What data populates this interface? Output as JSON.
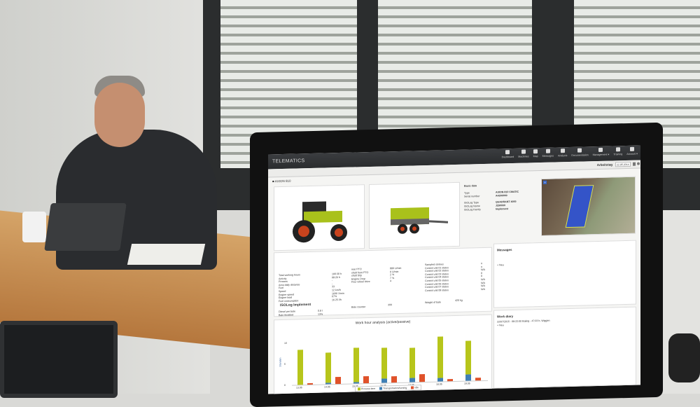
{
  "app": {
    "brand": "TELEMATICS"
  },
  "nav": [
    {
      "label": "Dashboard"
    },
    {
      "label": "Machines"
    },
    {
      "label": "Map"
    },
    {
      "label": "Messages"
    },
    {
      "label": "Analysis"
    },
    {
      "label": "Documentation"
    },
    {
      "label": "Management ▾"
    },
    {
      "label": "Training"
    },
    {
      "label": "Account ▾"
    }
  ],
  "subbar": {
    "workday_label": "Arbeitstag",
    "date": "22.05.2014"
  },
  "machine": {
    "name": "AXION 810"
  },
  "basic": {
    "title": "Basic data",
    "rows": [
      {
        "k": "Type",
        "v": "AXION 810 CMATIC"
      },
      {
        "k": "Serial number",
        "v": "A4300000"
      },
      {
        "k": "ISOLog Type",
        "v": "QUADRANT 4000"
      },
      {
        "k": "ISOLog Name",
        "v": "J290000"
      },
      {
        "k": "ISOLog Family",
        "v": "Implement"
      }
    ]
  },
  "stats": {
    "col1": [
      {
        "k": "Total working hours",
        "v": "100:30 h"
      },
      {
        "k": "Activity",
        "v": "08:26 h"
      },
      {
        "k": "Process",
        "v": "-"
      },
      {
        "k": "Area daily distance",
        "v": "-"
      },
      {
        "k": "Fuel",
        "v": "33"
      },
      {
        "k": "Speed",
        "v": "12 km/h"
      },
      {
        "k": "Engine speed",
        "v": "1690 1/min"
      },
      {
        "k": "Engine load",
        "v": "67%"
      },
      {
        "k": "Fuel consumption",
        "v": "16.25 l/h"
      }
    ],
    "col2": [
      {
        "k": "rear PTO",
        "v": "880 U/min"
      },
      {
        "k": "shaft front PTO",
        "v": "0 U/min"
      },
      {
        "k": "shaft Slip",
        "v": "2 %"
      },
      {
        "k": "Engine Drop",
        "v": "7 %"
      },
      {
        "k": "Four wheel drive",
        "v": "4"
      }
    ],
    "col3": [
      {
        "k": "Sampled strokes",
        "v": "n"
      },
      {
        "k": "Control unit 01 status",
        "v": "n"
      },
      {
        "k": "Control unit 02 status",
        "v": "N/A"
      },
      {
        "k": "Control unit 03 status",
        "v": "0"
      },
      {
        "k": "Control unit 04 status",
        "v": "0"
      },
      {
        "k": "Control unit 05 status",
        "v": "N/A"
      },
      {
        "k": "Control unit 06 status",
        "v": "N/A"
      },
      {
        "k": "Control unit 07 status",
        "v": "N/A"
      },
      {
        "k": "Control unit 08 status",
        "v": "N/A"
      }
    ],
    "isolog_title": "ISOLog Implement",
    "isolog": [
      {
        "k": "Diesel per bale",
        "v": "0.8 l"
      },
      {
        "k": "Bale throttled",
        "v": "13%"
      }
    ],
    "bale_counter": {
      "k": "Bale counter",
      "v": "399"
    },
    "bale_weight": {
      "k": "Weight of bale",
      "v": "420 kg"
    }
  },
  "messages": {
    "title": "Messages",
    "item": "+ Neu"
  },
  "diary": {
    "title": "Work diary",
    "entry": "22/07/2015 - 08:22:00 Baling - 47:03 h, Wiggen",
    "item": "+ Neu"
  },
  "chart_data": {
    "type": "bar",
    "title": "Work hour analysis (active/passive)",
    "ylabel": "Stunden",
    "ylim": [
      0,
      10
    ],
    "yticks": [
      "0",
      "5",
      "10"
    ],
    "categories": [
      "13.05",
      "14.05",
      "15.05",
      "16.05",
      "17.05",
      "18.05",
      "19.05"
    ],
    "series": [
      {
        "name": "Process time",
        "color": "#b7c51b",
        "values": [
          8.3,
          7.2,
          8.2,
          7.3,
          7.2,
          9.8,
          8.0
        ]
      },
      {
        "name": "Transportation/turning",
        "color": "#3f7fb5",
        "values": [
          0,
          0.3,
          0.3,
          1.0,
          1.0,
          0.8,
          1.5
        ]
      },
      {
        "name": "Idle",
        "color": "#e0522a",
        "values": [
          0.3,
          1.7,
          1.6,
          1.5,
          1.9,
          0.5,
          0.7
        ]
      }
    ],
    "legend": "bottom"
  },
  "colors": {
    "topbar": "#2f3133",
    "accent_green": "#b7c51b"
  }
}
